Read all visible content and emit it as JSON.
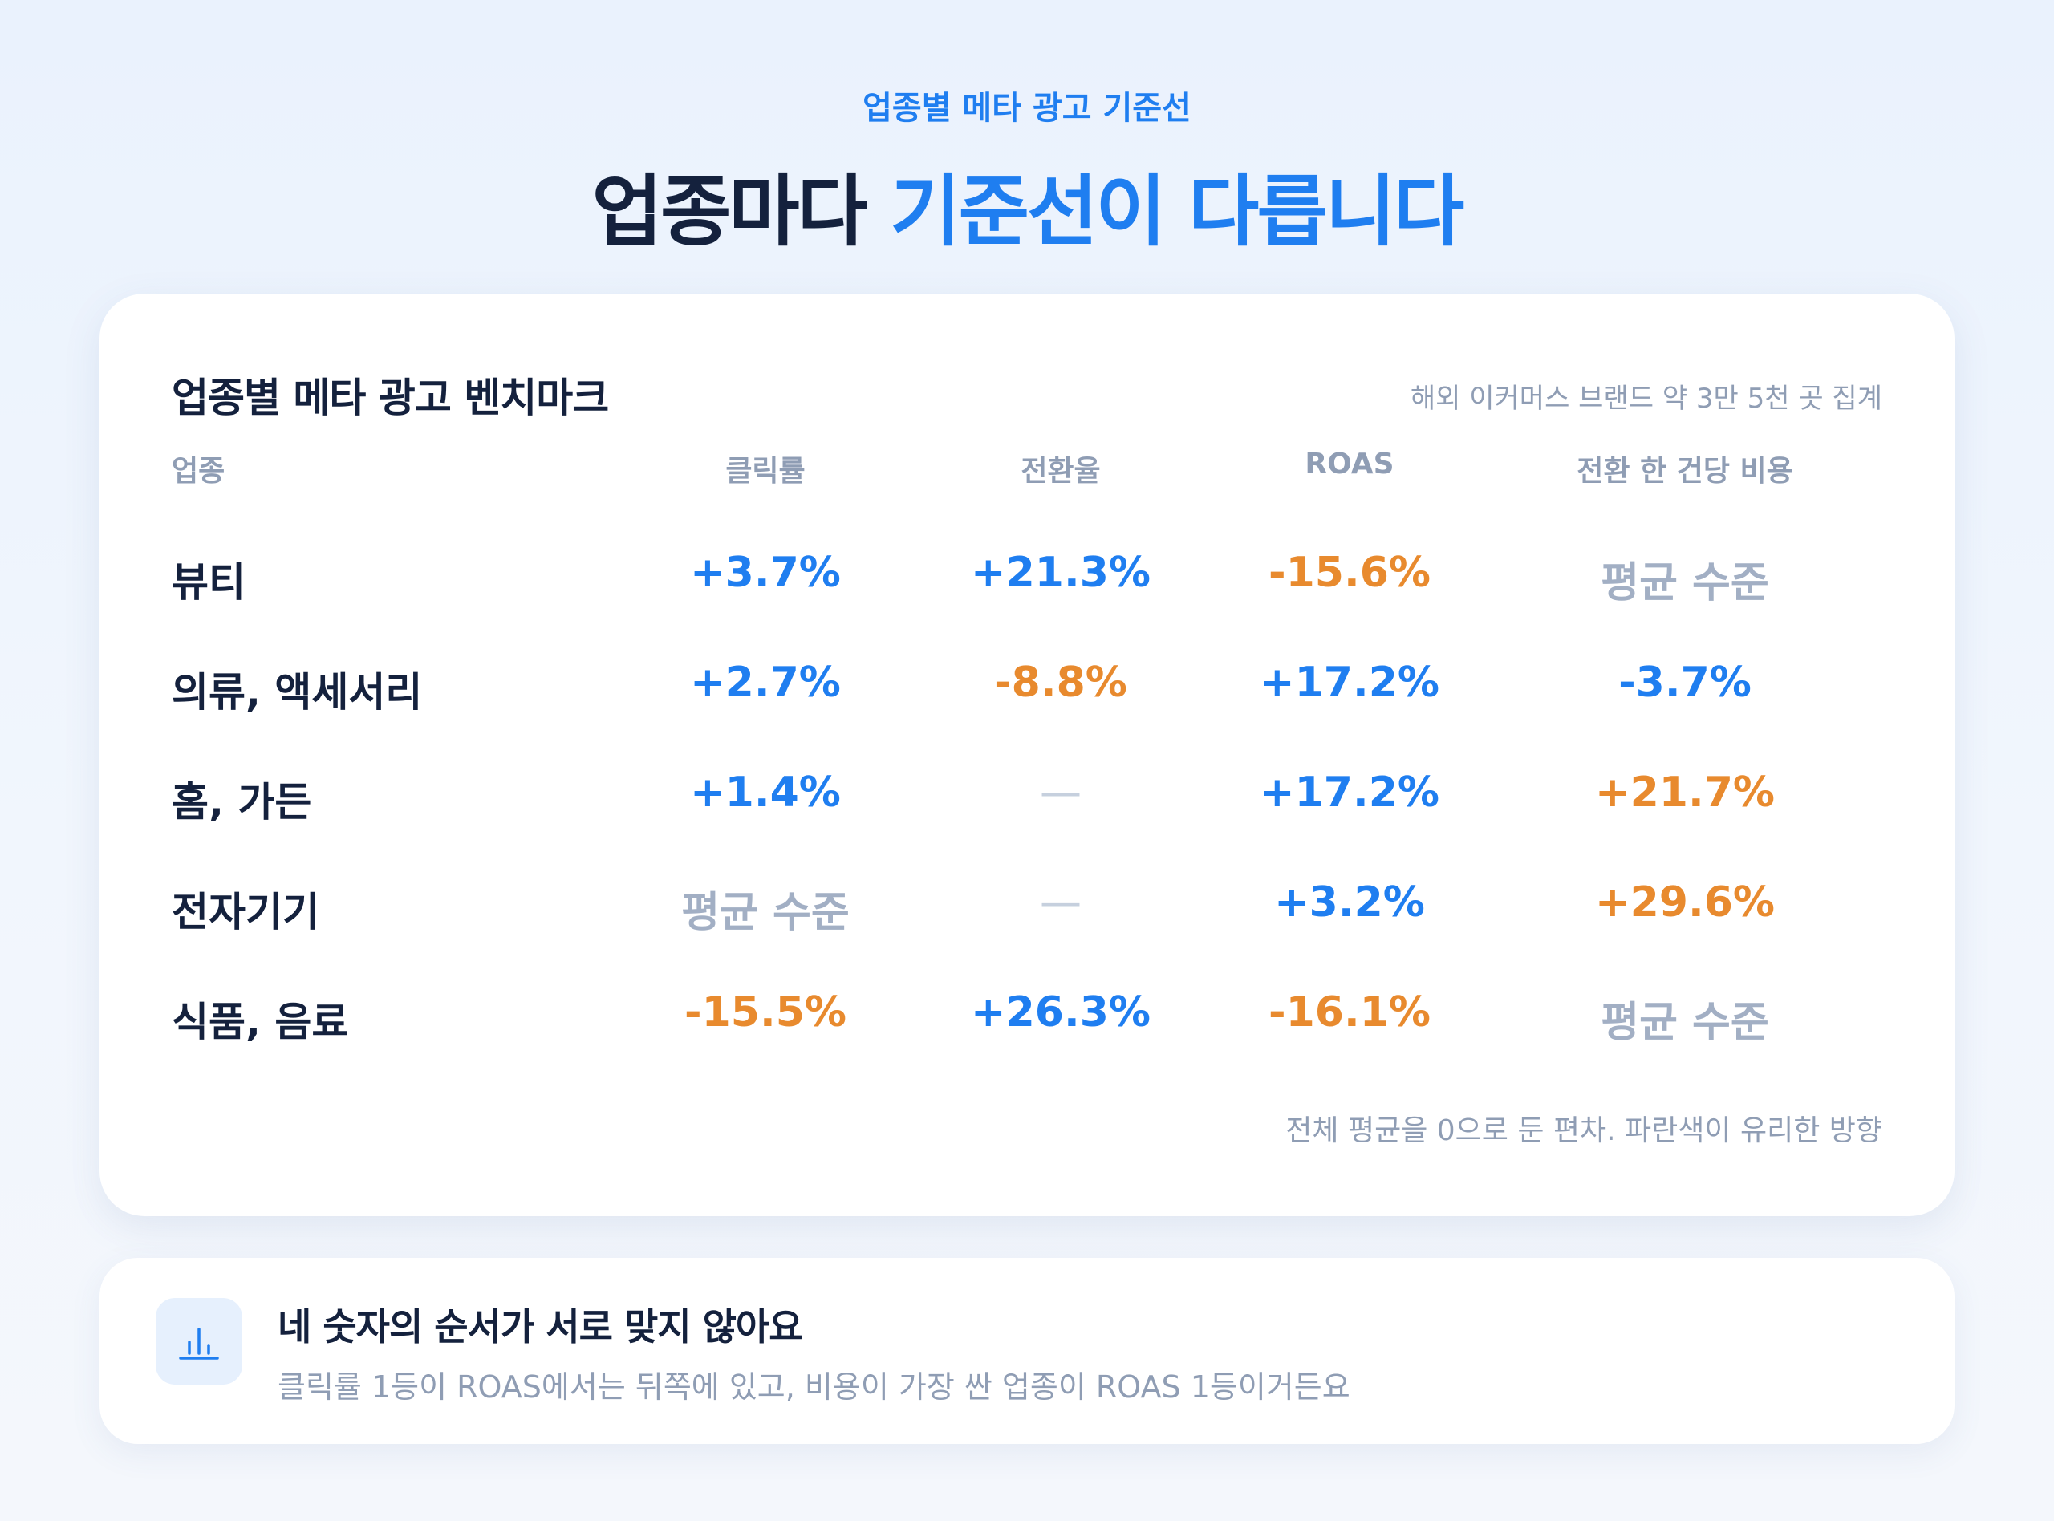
{
  "header": {
    "eyebrow": "업종별 메타 광고 기준선",
    "headline_main": "업종마다 ",
    "headline_accent": "기준선이 다릅니다"
  },
  "card": {
    "title": "업종별 메타 광고 벤치마크",
    "note": "해외 이커머스 브랜드 약 3만 5천 곳 집계",
    "columns": [
      "업종",
      "클릭률",
      "전환율",
      "ROAS",
      "전환 한 건당 비용"
    ],
    "rows": [
      {
        "label": "뷰티",
        "cells": [
          {
            "text": "+3.7%",
            "tone": "pos"
          },
          {
            "text": "+21.3%",
            "tone": "pos"
          },
          {
            "text": "-15.6%",
            "tone": "neg"
          },
          {
            "text": "평균 수준",
            "tone": "avg"
          }
        ]
      },
      {
        "label": "의류, 액세서리",
        "cells": [
          {
            "text": "+2.7%",
            "tone": "pos"
          },
          {
            "text": "-8.8%",
            "tone": "neg"
          },
          {
            "text": "+17.2%",
            "tone": "pos"
          },
          {
            "text": "-3.7%",
            "tone": "pos"
          }
        ]
      },
      {
        "label": "홈, 가든",
        "cells": [
          {
            "text": "+1.4%",
            "tone": "pos"
          },
          {
            "text": "—",
            "tone": "dash"
          },
          {
            "text": "+17.2%",
            "tone": "pos"
          },
          {
            "text": "+21.7%",
            "tone": "neg"
          }
        ]
      },
      {
        "label": "전자기기",
        "cells": [
          {
            "text": "평균 수준",
            "tone": "avg"
          },
          {
            "text": "—",
            "tone": "dash"
          },
          {
            "text": "+3.2%",
            "tone": "pos"
          },
          {
            "text": "+29.6%",
            "tone": "neg"
          }
        ]
      },
      {
        "label": "식품, 음료",
        "cells": [
          {
            "text": "-15.5%",
            "tone": "neg"
          },
          {
            "text": "+26.3%",
            "tone": "pos"
          },
          {
            "text": "-16.1%",
            "tone": "neg"
          },
          {
            "text": "평균 수준",
            "tone": "avg"
          }
        ]
      }
    ],
    "footnote": "전체 평균을 0으로 둔 편차. 파란색이 유리한 방향"
  },
  "insight": {
    "icon": "bar-chart-icon",
    "title": "네 숫자의 순서가 서로 맞지 않아요",
    "text": "클릭률 1등이 ROAS에서는 뒤쪽에 있고, 비용이 가장 싼 업종이 ROAS 1등이거든요"
  },
  "colors": {
    "positive": "#1f7ef0",
    "negative": "#e88a2e",
    "neutral": "#a2afc4",
    "heading": "#14213d"
  }
}
